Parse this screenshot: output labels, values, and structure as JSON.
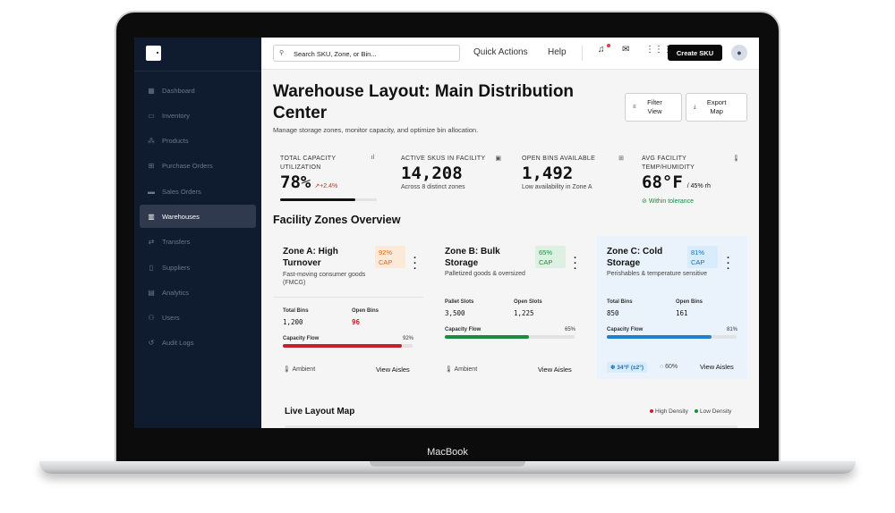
{
  "device": {
    "label": "MacBook"
  },
  "sidebar": {
    "items": [
      {
        "label": "Dashboard",
        "icon": "dashboard-icon"
      },
      {
        "label": "Inventory",
        "icon": "inventory-icon"
      },
      {
        "label": "Products",
        "icon": "products-icon"
      },
      {
        "label": "Purchase Orders",
        "icon": "cart-icon"
      },
      {
        "label": "Sales Orders",
        "icon": "truck-icon"
      },
      {
        "label": "Warehouses",
        "icon": "building-icon",
        "active": true
      },
      {
        "label": "Transfers",
        "icon": "transfer-icon"
      },
      {
        "label": "Suppliers",
        "icon": "supplier-icon"
      },
      {
        "label": "Analytics",
        "icon": "analytics-icon"
      },
      {
        "label": "Users",
        "icon": "users-icon"
      },
      {
        "label": "Audit Logs",
        "icon": "history-icon"
      }
    ]
  },
  "topbar": {
    "search_placeholder": "Search SKU, Zone, or Bin...",
    "quick_actions": "Quick Actions",
    "help": "Help",
    "create_sku": "Create SKU"
  },
  "page": {
    "title": "Warehouse Layout: Main Distribution Center",
    "subtitle": "Manage storage zones, monitor capacity, and optimize bin allocation.",
    "filter_label": "Filter View",
    "export_label": "Export Map"
  },
  "kpis": {
    "capacity": {
      "label": "Total Capacity Utilization",
      "value": "78%",
      "delta": "+2.4%",
      "fill": 0.78
    },
    "skus": {
      "label": "Active SKUs in Facility",
      "value": "14,208",
      "sub": "Across 8 distinct zones"
    },
    "bins": {
      "label": "Open Bins Available",
      "value": "1,492",
      "sub": "Low availability in Zone A"
    },
    "temp": {
      "label": "Avg Facility Temp/Humidity",
      "value": "68°F",
      "humidity": "/ 45% rh",
      "status": "Within tolerance"
    }
  },
  "zones_title": "Facility Zones Overview",
  "zones": [
    {
      "name": "Zone A: High Turnover",
      "badge": "92% CAP",
      "desc": "Fast-moving consumer goods (FMCG)",
      "m1_label": "Total Bins",
      "m1_value": "1,200",
      "m2_label": "Open Bins",
      "m2_value": "96",
      "flow_label": "Capacity Flow",
      "flow_pct": "92%",
      "fill": 0.92,
      "env": "Ambient",
      "link": "View Aisles",
      "bar_color": "#c8202a"
    },
    {
      "name": "Zone B: Bulk Storage",
      "badge": "65% CAP",
      "desc": "Palletized goods & oversized",
      "m1_label": "Pallet Slots",
      "m1_value": "3,500",
      "m2_label": "Open Slots",
      "m2_value": "1,225",
      "flow_label": "Capacity Flow",
      "flow_pct": "65%",
      "fill": 0.65,
      "env": "Ambient",
      "link": "View Aisles",
      "bar_color": "#1e8a3e"
    },
    {
      "name": "Zone C: Cold Storage",
      "badge": "81% CAP",
      "desc": "Perishables & temperature sensitive",
      "m1_label": "Total Bins",
      "m1_value": "850",
      "m2_label": "Open Bins",
      "m2_value": "161",
      "flow_label": "Capacity Flow",
      "flow_pct": "81%",
      "fill": 0.81,
      "temp_chip": "34°F (±2°)",
      "humidity": "60%",
      "link": "View Aisles",
      "bar_color": "#1f7fd0"
    }
  ],
  "live_map": {
    "title": "Live Layout Map",
    "legend_high": "High Density",
    "legend_low": "Low Density"
  }
}
